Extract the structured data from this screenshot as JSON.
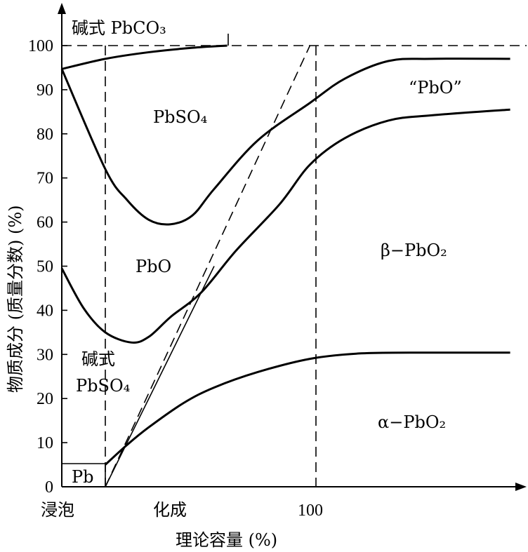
{
  "chart_data": {
    "type": "area",
    "ylabel": "物质成分 (质量分数) (%)",
    "xlabel": "理论容量 (%)",
    "x_tick_labels": [
      "浸泡",
      "化成",
      "100"
    ],
    "y_ticks": [
      0,
      10,
      20,
      30,
      40,
      50,
      60,
      70,
      80,
      90,
      100
    ],
    "ylim": [
      0,
      100
    ],
    "region_labels": [
      {
        "text": "碱式 PbCO₃"
      },
      {
        "text": "PbSO₄"
      },
      {
        "text": "“PbO”"
      },
      {
        "text": "PbO"
      },
      {
        "text": "β−PbO₂"
      },
      {
        "text": "碱式"
      },
      {
        "text": "PbSO₄"
      },
      {
        "text": "α−PbO₂"
      },
      {
        "text": "Pb"
      }
    ],
    "boundaries": [
      {
        "id": "basic_pbco3_top",
        "points": [
          [
            0,
            94.7
          ],
          [
            1,
            97
          ],
          [
            2,
            98.5
          ],
          [
            3,
            99.5
          ],
          [
            3.8,
            100
          ]
        ]
      },
      {
        "id": "pbso4_lower",
        "points": [
          [
            0,
            94.7
          ],
          [
            1,
            72
          ],
          [
            1.5,
            65
          ],
          [
            2,
            60.5
          ],
          [
            2.5,
            59.5
          ],
          [
            3,
            61.5
          ],
          [
            3.5,
            67.5
          ],
          [
            4.5,
            78.5
          ],
          [
            5.7,
            87
          ],
          [
            6.5,
            92.5
          ],
          [
            7.5,
            96.5
          ],
          [
            8.5,
            97
          ],
          [
            10.3,
            97
          ]
        ]
      },
      {
        "id": "beta_lower",
        "points": [
          [
            0,
            49.5
          ],
          [
            0.5,
            40.5
          ],
          [
            1,
            35
          ],
          [
            1.6,
            32.7
          ],
          [
            2,
            34
          ],
          [
            2.5,
            38.5
          ],
          [
            3.2,
            44
          ],
          [
            4,
            53.5
          ],
          [
            5,
            64
          ],
          [
            5.7,
            73
          ],
          [
            6.5,
            79
          ],
          [
            7.5,
            83
          ],
          [
            8.5,
            84.2
          ],
          [
            10.3,
            85.5
          ]
        ]
      },
      {
        "id": "alpha_top",
        "points": [
          [
            1,
            5
          ],
          [
            1.5,
            9.5
          ],
          [
            2,
            13.5
          ],
          [
            2.8,
            19
          ],
          [
            3.5,
            22.5
          ],
          [
            4.5,
            26
          ],
          [
            5.7,
            29
          ],
          [
            6.8,
            30.2
          ],
          [
            8,
            30.4
          ],
          [
            10.3,
            30.4
          ]
        ]
      }
    ],
    "reference_lines": [
      {
        "from": [
          1,
          0
        ],
        "to": [
          3.5,
          50
        ]
      },
      {
        "from": [
          1,
          0
        ],
        "to": [
          5.7,
          100
        ],
        "style": "dashed"
      }
    ],
    "vertical_dashed_x": [
      1,
      5.7
    ],
    "horizontal_dashed_y": 100
  }
}
